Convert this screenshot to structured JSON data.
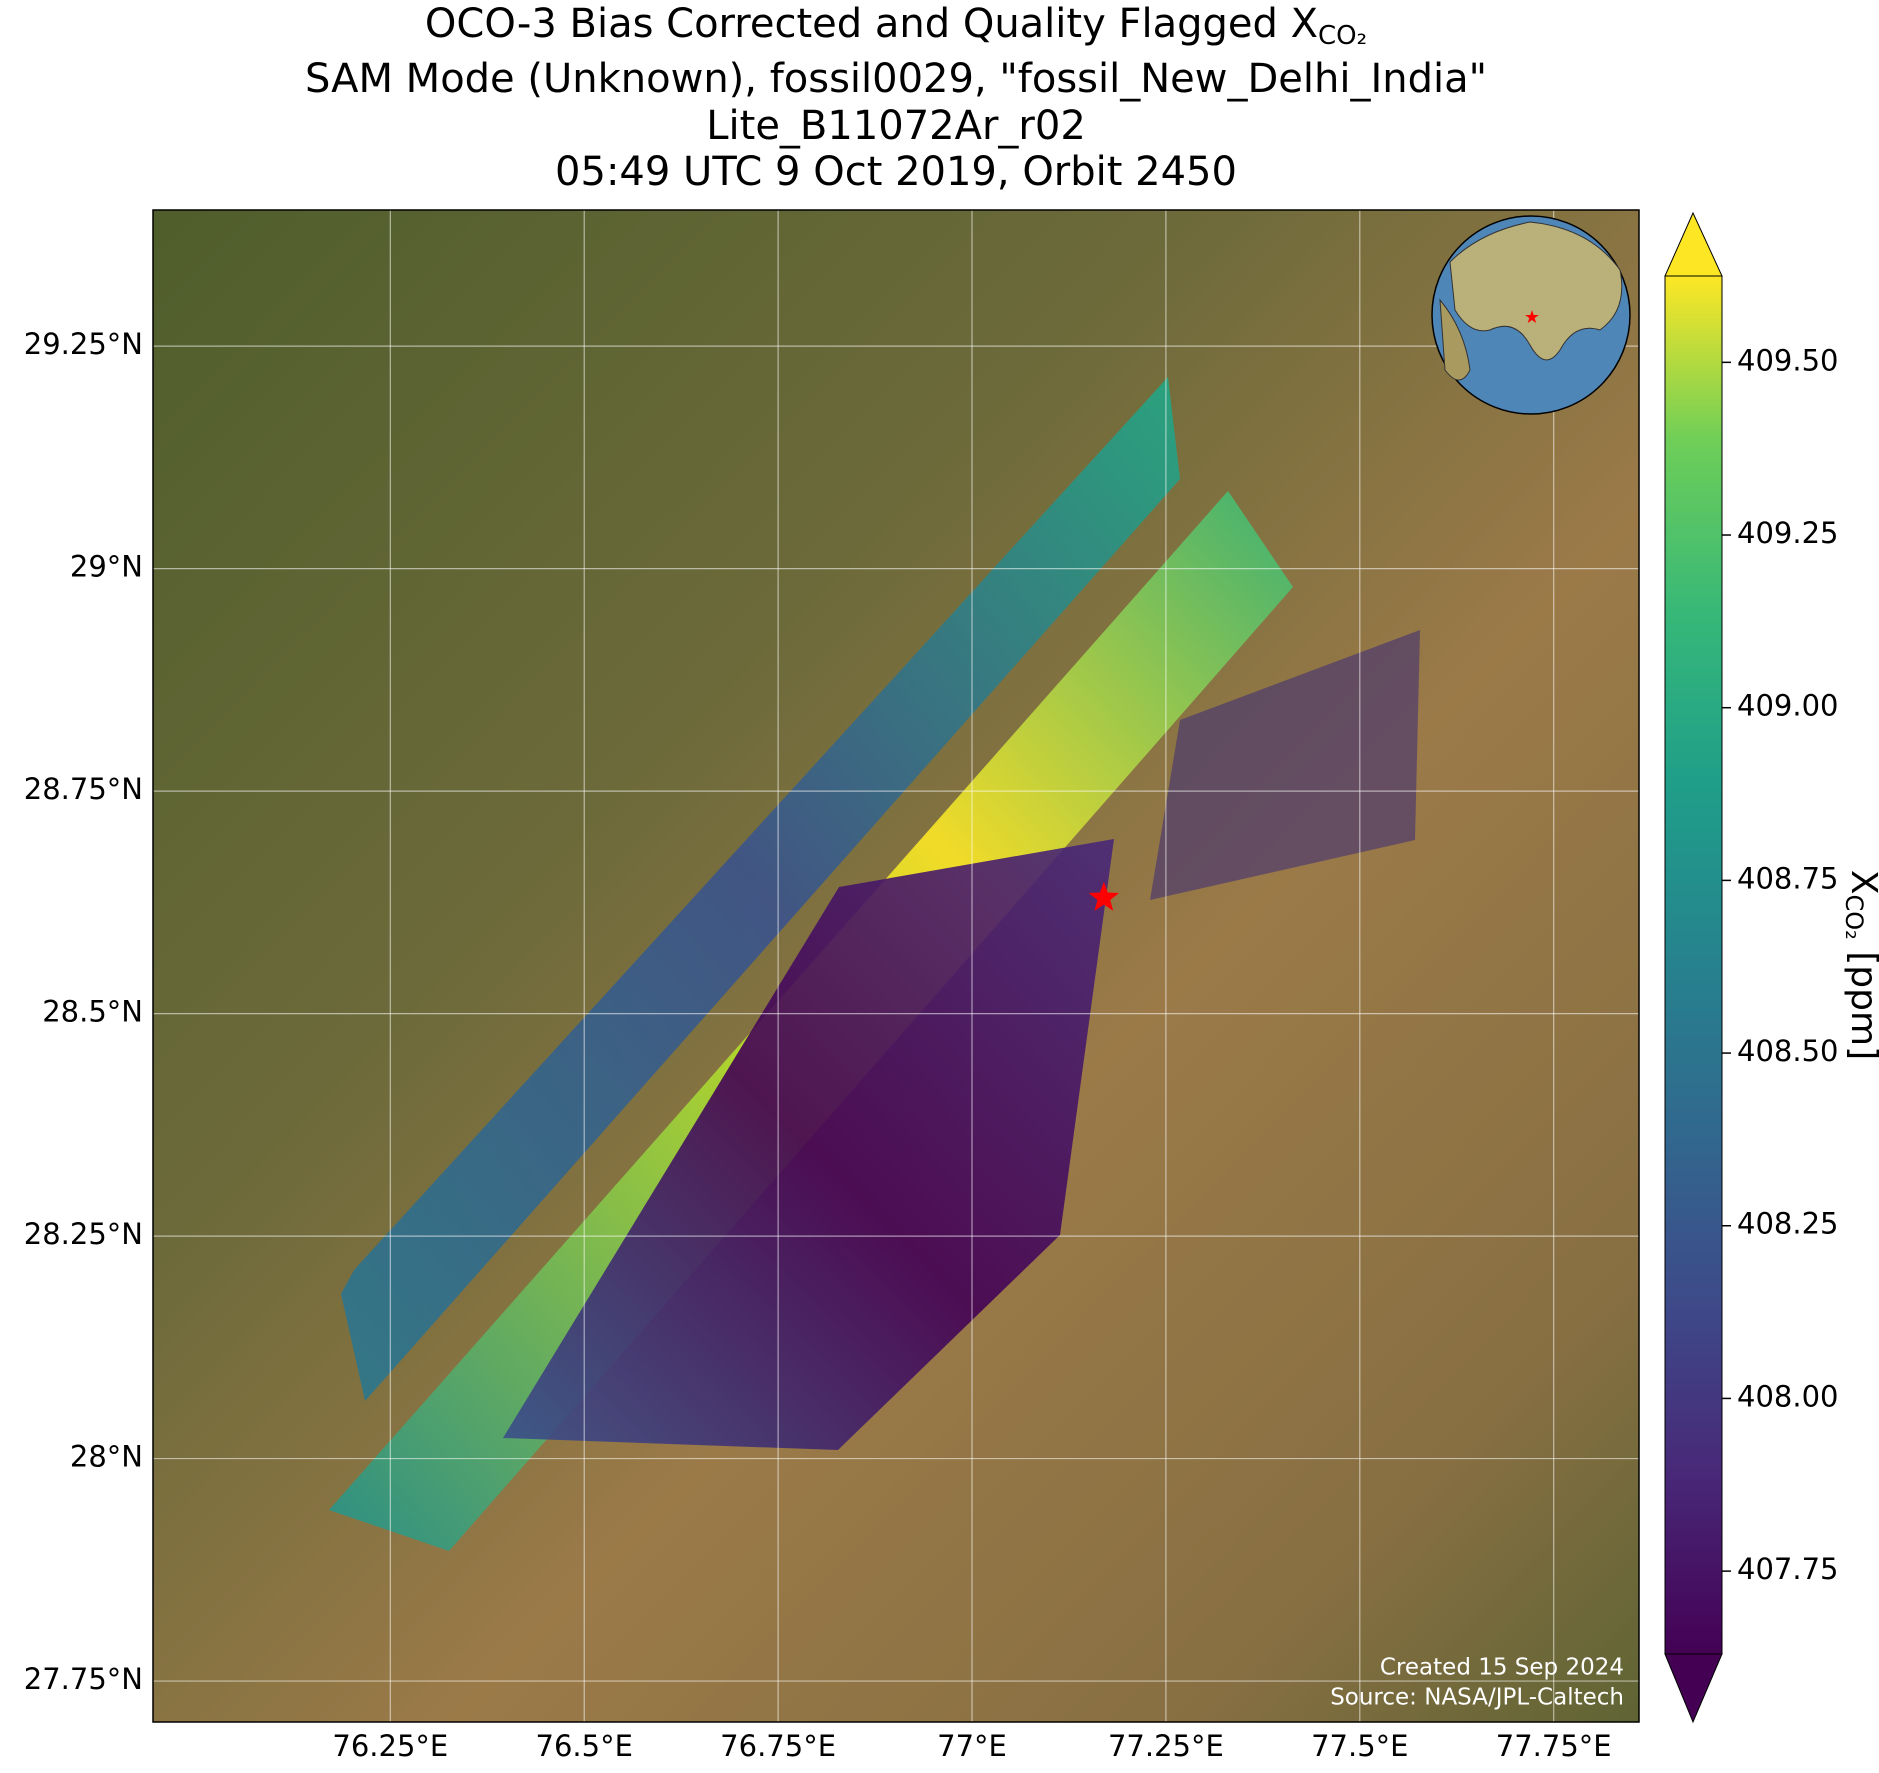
{
  "chart_data": {
    "type": "map",
    "title_line1": "OCO-3 Bias Corrected and Quality Flagged X",
    "title_subscript": "CO₂",
    "title_line2": "SAM Mode (Unknown), fossil0029, \"fossil_New_Delhi_India\"",
    "title_line3": "Lite_B11072Ar_r02",
    "title_line4": "05:49 UTC 9 Oct 2019, Orbit 2450",
    "xlim": [
      75.944,
      77.86
    ],
    "ylim": [
      27.704,
      29.403
    ],
    "xticks": [
      {
        "value": 76.25,
        "label": "76.25°E"
      },
      {
        "value": 76.5,
        "label": "76.5°E"
      },
      {
        "value": 76.75,
        "label": "76.75°E"
      },
      {
        "value": 77,
        "label": "77°E"
      },
      {
        "value": 77.25,
        "label": "77.25°E"
      },
      {
        "value": 77.5,
        "label": "77.5°E"
      },
      {
        "value": 77.75,
        "label": "77.75°E"
      }
    ],
    "yticks": [
      {
        "value": 27.75,
        "label": "27.75°N"
      },
      {
        "value": 28,
        "label": "28°N"
      },
      {
        "value": 28.25,
        "label": "28.25°N"
      },
      {
        "value": 28.5,
        "label": "28.5°N"
      },
      {
        "value": 28.75,
        "label": "28.75°N"
      },
      {
        "value": 29,
        "label": "29°N"
      },
      {
        "value": 29.25,
        "label": "29.25°N"
      }
    ],
    "grid": true,
    "site": {
      "lon": 77.17,
      "lat": 28.63,
      "color": "#ff0000"
    },
    "colorbar": {
      "label_main": "X",
      "label_subscript": "CO₂",
      "label_units": " [ppm]",
      "lim": [
        407.63,
        409.625
      ],
      "ticks": [
        {
          "value": 409.5,
          "label": "409.50"
        },
        409.25,
        {
          "value": 409.0,
          "label": "409.00"
        },
        408.75,
        {
          "value": 408.5,
          "label": "408.50"
        },
        408.25,
        {
          "value": 408.0,
          "label": "408.00"
        },
        407.75
      ]
    },
    "annotations": [
      "Created 15 Sep 2024",
      "Source: NASA/JPL-Caltech"
    ]
  }
}
